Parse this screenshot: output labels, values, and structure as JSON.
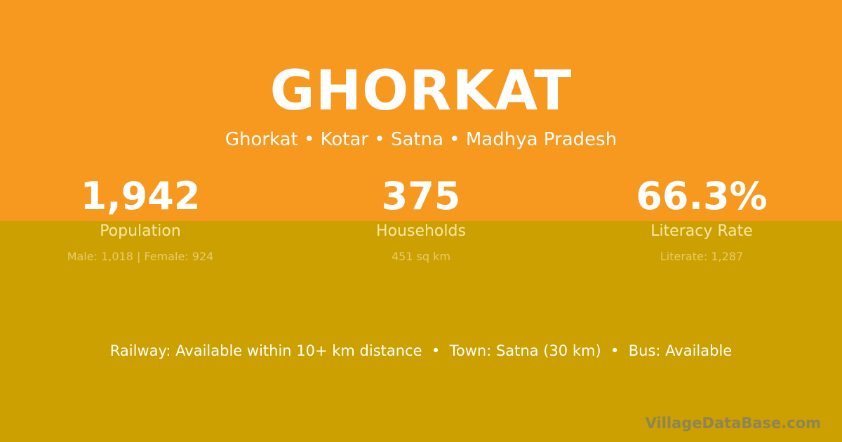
{
  "title": "GHORKAT",
  "subtitle": "Ghorkat • Kotar • Satna • Madhya Pradesh",
  "stats": [
    {
      "value": "1,942",
      "label": "Population",
      "sub": "Male: 1,018 | Female: 924"
    },
    {
      "value": "375",
      "label": "Households",
      "sub": "451 sq km"
    },
    {
      "value": "66.3%",
      "label": "Literacy Rate",
      "sub": "Literate: 1,287"
    }
  ],
  "facts": "Railway: Available within 10+ km distance  •  Town: Satna (30 km)  •  Bus: Available",
  "brand": "VillageDataBase.com",
  "colors": {
    "top": "#F7981F",
    "bottom": "#CBA000"
  }
}
